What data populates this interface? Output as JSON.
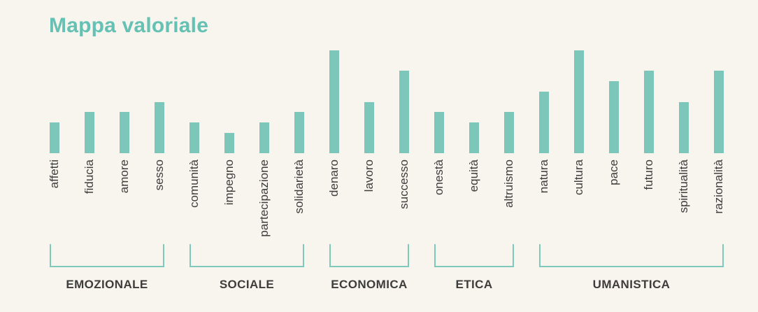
{
  "page": {
    "background_color": "#f8f4ee",
    "accent_teal": "#7cc6ba",
    "text_color": "#3d3d3c"
  },
  "header": {
    "title": "Mappa valoriale",
    "title_color": "#65c1b4"
  },
  "chart_data": {
    "type": "bar",
    "title": "Mappa valoriale",
    "orientation": "vertical",
    "xlabel": "",
    "ylabel": "",
    "y_axis_visible": false,
    "grid": false,
    "legend": false,
    "value_scale": "relative score, estimated from bar heights (no axis shown)",
    "ylim": [
      0,
      10
    ],
    "bar_color": "#7cc6ba",
    "label_color": "#3d3d3c",
    "bracket_color": "#7fc9bc",
    "categories": [
      "affetti",
      "fiducia",
      "amore",
      "sesso",
      "comunità",
      "impegno",
      "partecipazione",
      "solidarietà",
      "denaro",
      "lavoro",
      "successo",
      "onestà",
      "equità",
      "altruismo",
      "natura",
      "cultura",
      "pace",
      "futuro",
      "spiritualità",
      "razionalità"
    ],
    "values": [
      3,
      4,
      4,
      5,
      3,
      2,
      3,
      4,
      10,
      5,
      8,
      4,
      3,
      4,
      6,
      10,
      7,
      8,
      5,
      8
    ],
    "groups": [
      {
        "label": "EMOZIONALE",
        "items": [
          {
            "label": "affetti",
            "value": 3
          },
          {
            "label": "fiducia",
            "value": 4
          },
          {
            "label": "amore",
            "value": 4
          },
          {
            "label": "sesso",
            "value": 5
          }
        ]
      },
      {
        "label": "SOCIALE",
        "items": [
          {
            "label": "comunità",
            "value": 3
          },
          {
            "label": "impegno",
            "value": 2
          },
          {
            "label": "partecipazione",
            "value": 3
          },
          {
            "label": "solidarietà",
            "value": 4
          }
        ]
      },
      {
        "label": "ECONOMICA",
        "items": [
          {
            "label": "denaro",
            "value": 10
          },
          {
            "label": "lavoro",
            "value": 5
          },
          {
            "label": "successo",
            "value": 8
          }
        ]
      },
      {
        "label": "ETICA",
        "items": [
          {
            "label": "onestà",
            "value": 4
          },
          {
            "label": "equità",
            "value": 3
          },
          {
            "label": "altruismo",
            "value": 4
          }
        ]
      },
      {
        "label": "UMANISTICA",
        "items": [
          {
            "label": "natura",
            "value": 6
          },
          {
            "label": "cultura",
            "value": 10
          },
          {
            "label": "pace",
            "value": 7
          },
          {
            "label": "futuro",
            "value": 8
          },
          {
            "label": "spiritualità",
            "value": 5
          },
          {
            "label": "razionalità",
            "value": 8
          }
        ]
      }
    ]
  }
}
